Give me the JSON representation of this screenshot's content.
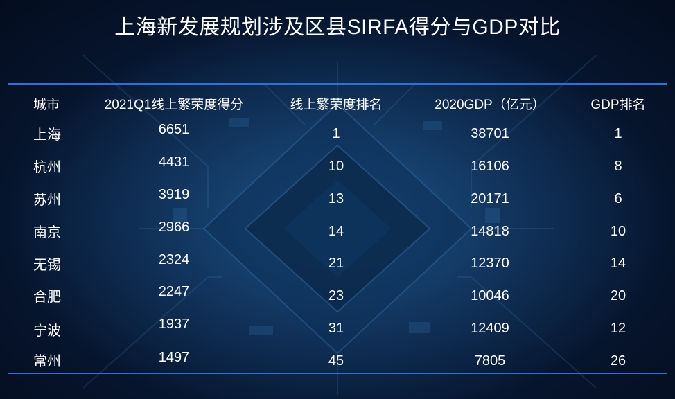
{
  "title": "上海新发展规划涉及区县SIRFA得分与GDP对比",
  "table": {
    "headers": [
      "城市",
      "2021Q1线上繁荣度得分",
      "线上繁荣度排名",
      "2020GDP（亿元）",
      "GDP排名"
    ],
    "rows": [
      [
        "上海",
        "6651",
        "1",
        "38701",
        "1"
      ],
      [
        "杭州",
        "4431",
        "10",
        "16106",
        "8"
      ],
      [
        "苏州",
        "3919",
        "13",
        "20171",
        "6"
      ],
      [
        "南京",
        "2966",
        "14",
        "14818",
        "10"
      ],
      [
        "无锡",
        "2324",
        "21",
        "12370",
        "14"
      ],
      [
        "合肥",
        "2247",
        "23",
        "10046",
        "20"
      ],
      [
        "宁波",
        "1937",
        "31",
        "12409",
        "12"
      ],
      [
        "常州",
        "1497",
        "45",
        "7805",
        "26"
      ]
    ]
  },
  "colors": {
    "accent_rule": "#2f6fd8",
    "background": "#06142c",
    "text": "#ffffff"
  }
}
